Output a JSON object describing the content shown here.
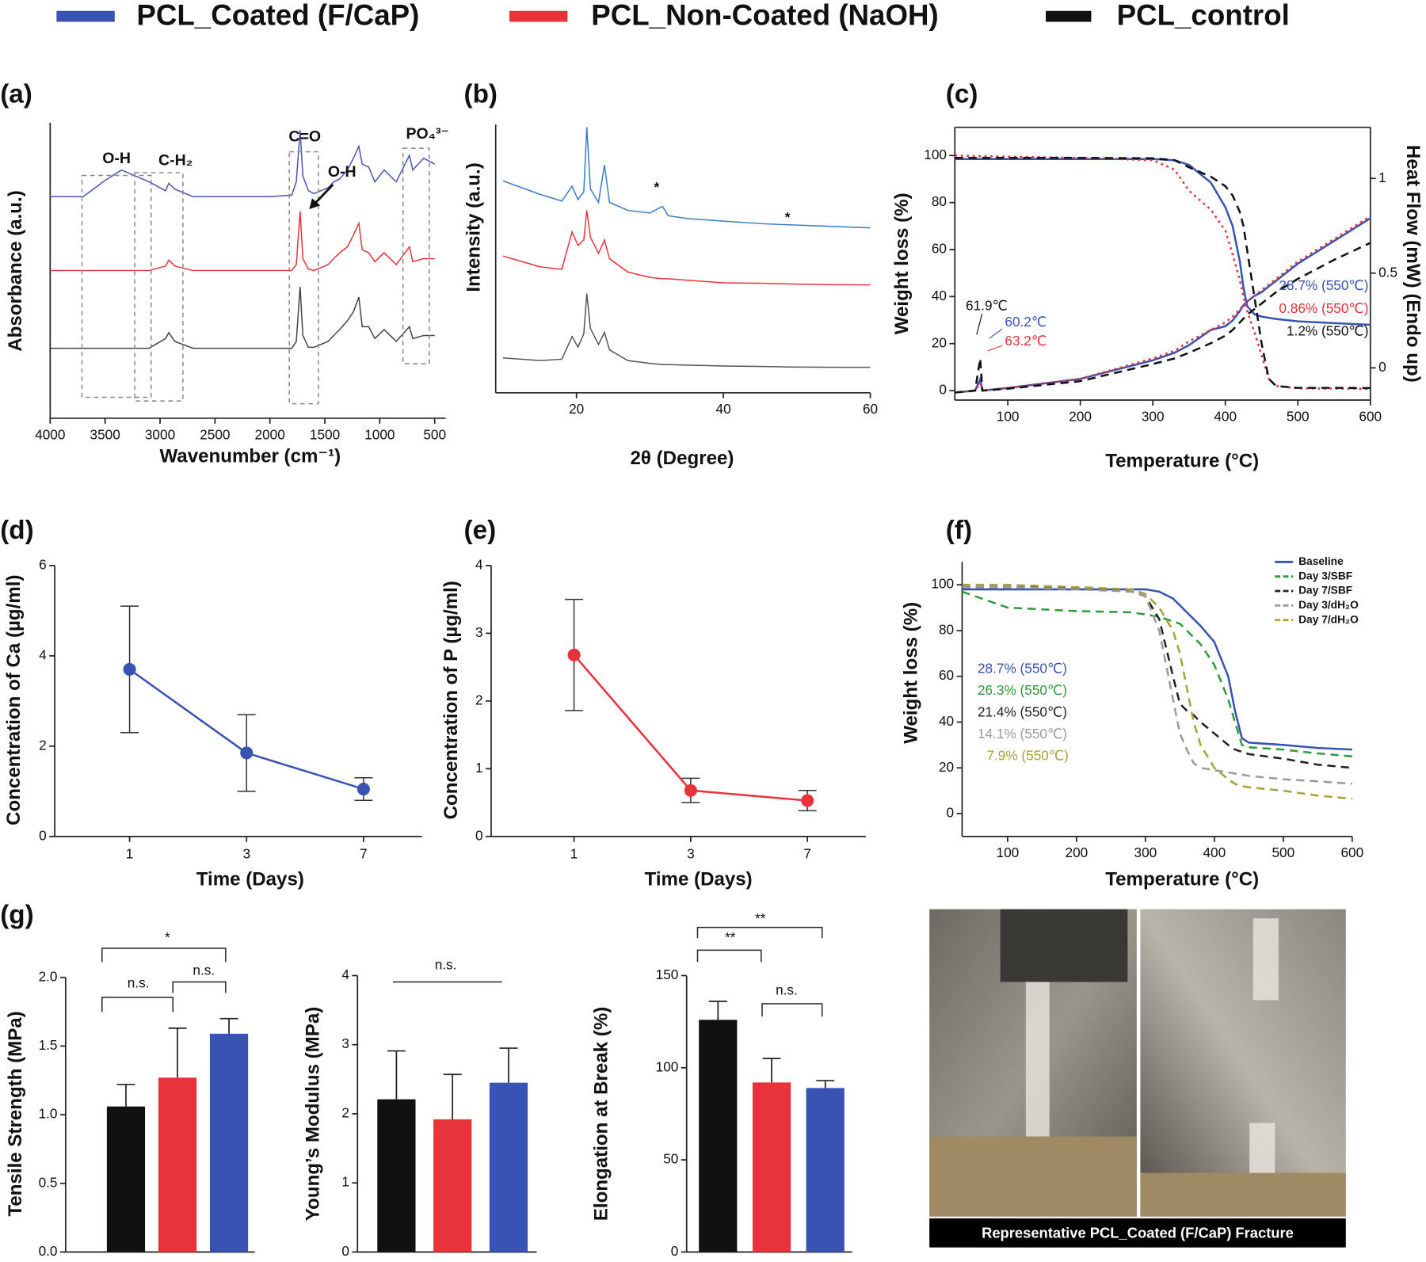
{
  "legend": [
    {
      "name": "PCL_Coated (F/CaP)",
      "color": "#3953b2"
    },
    {
      "name": "PCL_Non-Coated (NaOH)",
      "color": "#e8333a"
    },
    {
      "name": "PCL_control",
      "color": "#111111"
    }
  ],
  "photo": {
    "caption": "Representative PCL_Coated (F/CaP)  Fracture"
  },
  "chart_data": [
    {
      "type": "line",
      "label": "(a)",
      "x_label": "Wavenumber (cm⁻¹)",
      "y_label": "Absorbance (a.u.)",
      "x": [
        4000,
        3700,
        3500,
        3350,
        3100,
        2950,
        2920,
        2865,
        2700,
        2000,
        1800,
        1760,
        1725,
        1700,
        1650,
        1600,
        1470,
        1420,
        1365,
        1295,
        1240,
        1190,
        1160,
        1100,
        1045,
        960,
        850,
        730,
        700,
        600,
        500
      ],
      "xlim": [
        4000,
        400
      ],
      "xticks": [
        4000,
        3500,
        3000,
        2500,
        2000,
        1500,
        1000,
        500
      ],
      "ylim": [
        0,
        100
      ],
      "series": [
        {
          "color": "#4a52b5",
          "values": [
            75,
            75,
            80.5,
            84,
            80,
            77,
            79.5,
            77.5,
            75,
            75,
            75.5,
            80,
            97.5,
            82,
            77,
            76,
            78,
            80,
            81,
            84,
            88,
            92,
            86,
            85,
            80,
            84,
            80,
            89,
            84,
            88,
            86
          ]
        },
        {
          "color": "#e8333a",
          "values": [
            50,
            50,
            50,
            50,
            50,
            51.5,
            53.5,
            51.5,
            50,
            50,
            50,
            52,
            70,
            54,
            50.5,
            50,
            52,
            54,
            56,
            58,
            62,
            66,
            57,
            56,
            53,
            56,
            52,
            58,
            53,
            54,
            54
          ]
        },
        {
          "color": "#444444",
          "values": [
            23.7,
            23.7,
            23.7,
            23.7,
            23.7,
            27,
            29,
            26,
            23.7,
            23.7,
            23.7,
            26,
            44.5,
            28,
            24,
            24,
            26,
            28,
            30,
            33,
            36,
            41,
            31,
            31,
            27,
            30,
            26,
            31,
            27,
            28,
            28
          ]
        }
      ],
      "annotations": [
        "O-H",
        "C-H₂",
        "C=O",
        "O-H",
        "PO₄³⁻"
      ]
    },
    {
      "type": "line",
      "label": "(b)",
      "x_label": "2θ (Degree)",
      "y_label": "Intensity (a.u.)",
      "x": [
        10,
        15,
        18,
        19.4,
        20.2,
        21,
        21.4,
        21.9,
        23,
        23.8,
        24.5,
        27,
        30,
        31.7,
        32.5,
        35,
        40,
        45.6,
        50,
        55,
        60
      ],
      "xlim": [
        9,
        60
      ],
      "xticks": [
        20,
        40,
        60
      ],
      "ylim": [
        0,
        100
      ],
      "series": [
        {
          "color": "#3a7bc8",
          "values": [
            79,
            74,
            71.5,
            77,
            72,
            75,
            99,
            76,
            71,
            85,
            71,
            68,
            67,
            69.5,
            66,
            65,
            64,
            63,
            62.5,
            62,
            61.5
          ]
        },
        {
          "color": "#e8333a",
          "values": [
            51,
            47,
            46,
            60,
            55,
            57,
            68,
            58,
            52,
            57,
            50,
            45,
            43,
            42.5,
            42.5,
            42,
            41,
            40.8,
            40.5,
            40.3,
            40.2
          ]
        },
        {
          "color": "#555555",
          "values": [
            13,
            12,
            12.5,
            21,
            17,
            22,
            37,
            24,
            18,
            22.5,
            16,
            12,
            11,
            10.5,
            10.5,
            10.3,
            10,
            9.8,
            9.6,
            9.5,
            9.5
          ]
        }
      ],
      "annotations": [
        "*",
        "*"
      ]
    },
    {
      "type": "line",
      "label": "(c)",
      "x_label": "Temperature (°C)",
      "y_label": "Weight loss (%)",
      "y2_label": "Heat Flow (mW) (Endo up)",
      "x": [
        27,
        55,
        62,
        65,
        100,
        200,
        300,
        330,
        350,
        380,
        400,
        410,
        420,
        425,
        430,
        440,
        450,
        460,
        470,
        500,
        550,
        600
      ],
      "xlim": [
        27,
        600
      ],
      "xticks": [
        100,
        200,
        300,
        400,
        500,
        600
      ],
      "ylim": [
        -4,
        112
      ],
      "yticks": [
        0,
        20,
        40,
        60,
        80,
        100
      ],
      "y2lim": [
        -0.17,
        1.27
      ],
      "y2ticks": [
        0,
        0.5,
        1
      ],
      "series": [
        {
          "color": "#3953b2",
          "dash": "solid",
          "values": [
            98.5,
            98.5,
            98.5,
            98.5,
            98.5,
            98.5,
            98.5,
            98,
            96,
            88.5,
            78,
            70,
            55,
            44,
            36,
            32.5,
            31.5,
            31,
            30.5,
            29.5,
            28.7,
            28
          ]
        },
        {
          "color": "#e8333a",
          "dash": "dotted",
          "values": [
            100,
            99.8,
            99.7,
            99.7,
            99.5,
            99,
            98,
            94,
            85,
            77,
            68,
            58,
            47,
            40,
            34,
            25,
            15,
            5,
            2,
            1,
            0.86,
            0.8
          ]
        },
        {
          "color": "#111111",
          "dash": "dashed",
          "values": [
            99,
            99,
            99,
            99,
            99,
            99,
            98.8,
            98,
            95,
            91,
            87,
            83,
            76,
            70,
            60,
            40,
            20,
            5,
            2,
            1.2,
            1.2,
            1.1
          ]
        },
        {
          "color": "#3953b2",
          "dash": "solid",
          "axis": "y2",
          "values": [
            -0.13,
            -0.12,
            -0.06,
            -0.12,
            -0.106,
            -0.058,
            0.04,
            0.08,
            0.12,
            0.2,
            0.22,
            0.25,
            0.3,
            0.33,
            0.35,
            0.38,
            0.4,
            0.43,
            0.46,
            0.55,
            0.67,
            0.79
          ]
        },
        {
          "color": "#e8333a",
          "dash": "dotted",
          "axis": "y2",
          "values": [
            -0.13,
            -0.12,
            -0.08,
            -0.12,
            -0.106,
            -0.058,
            0.05,
            0.09,
            0.14,
            0.2,
            0.24,
            0.27,
            0.31,
            0.33,
            0.35,
            0.38,
            0.41,
            0.44,
            0.47,
            0.56,
            0.68,
            0.8
          ]
        },
        {
          "color": "#111111",
          "dash": "dashed",
          "axis": "y2",
          "values": [
            -0.13,
            -0.12,
            0.05,
            -0.12,
            -0.11,
            -0.07,
            0.02,
            0.05,
            0.08,
            0.13,
            0.17,
            0.2,
            0.24,
            0.26,
            0.28,
            0.31,
            0.34,
            0.37,
            0.4,
            0.47,
            0.57,
            0.66
          ]
        }
      ],
      "annotations": [
        {
          "text": "61.9℃",
          "color": "#111111"
        },
        {
          "text": "60.2℃",
          "color": "#3953b2"
        },
        {
          "text": "63.2℃",
          "color": "#e8333a"
        },
        {
          "text": "28.7% (550℃)",
          "color": "#3953b2"
        },
        {
          "text": "0.86% (550℃)",
          "color": "#e8333a"
        },
        {
          "text": "1.2% (550℃)",
          "color": "#111111"
        }
      ]
    },
    {
      "type": "line",
      "label": "(d)",
      "x_label": "Time (Days)",
      "y_label": "Concentration of Ca (µg/ml)",
      "categories": [
        "1",
        "3",
        "7"
      ],
      "values": [
        3.7,
        1.85,
        1.05
      ],
      "errors": [
        1.4,
        0.85,
        0.25
      ],
      "color": "#3953b2",
      "ylim": [
        0,
        6
      ],
      "yticks": [
        0,
        2,
        4,
        6
      ]
    },
    {
      "type": "line",
      "label": "(e)",
      "x_label": "Time (Days)",
      "y_label": "Concentration of P (µg/ml)",
      "categories": [
        "1",
        "3",
        "7"
      ],
      "values": [
        2.68,
        0.68,
        0.53
      ],
      "errors": [
        0.82,
        0.18,
        0.15
      ],
      "color": "#e8333a",
      "ylim": [
        0,
        4
      ],
      "yticks": [
        0,
        1,
        2,
        3,
        4
      ]
    },
    {
      "type": "line",
      "label": "(f)",
      "x_label": "Temperature (°C)",
      "y_label": "Weight loss (%)",
      "legend": "upper right",
      "x": [
        34,
        100,
        200,
        280,
        300,
        320,
        340,
        350,
        360,
        370,
        380,
        400,
        420,
        430,
        440,
        450,
        500,
        550,
        600
      ],
      "xlim": [
        34,
        600
      ],
      "xticks": [
        100,
        200,
        300,
        400,
        500,
        600
      ],
      "ylim": [
        -10,
        110
      ],
      "yticks": [
        0,
        20,
        40,
        60,
        80,
        100
      ],
      "series": [
        {
          "name": "Baseline",
          "color": "#3953b2",
          "dash": "solid",
          "values": [
            98,
            98,
            98,
            98,
            98,
            97,
            94,
            91,
            88,
            85,
            82,
            75,
            60,
            45,
            33,
            31,
            30,
            28.7,
            28
          ]
        },
        {
          "name": "Day 3/SBF",
          "color": "#2e9b3a",
          "dash": "dashed",
          "values": [
            97,
            90,
            88.5,
            88,
            87,
            86,
            84,
            83,
            80,
            77,
            74,
            65,
            50,
            40,
            30,
            29,
            28,
            26.3,
            25
          ]
        },
        {
          "name": "Day 7/SBF",
          "color": "#222222",
          "dash": "dashed",
          "values": [
            99,
            99,
            98.5,
            97,
            95,
            85,
            60,
            48,
            45,
            43,
            40,
            35,
            30,
            28,
            27,
            26,
            24,
            21.4,
            20
          ]
        },
        {
          "name": "Day 3/dH₂O",
          "color": "#9a9a9a",
          "dash": "dashed",
          "values": [
            99,
            99,
            98,
            97,
            95,
            80,
            50,
            35,
            28,
            22,
            20,
            19,
            18,
            17.5,
            17,
            16.5,
            15,
            14.1,
            13
          ]
        },
        {
          "name": "Day 7/dH₂O",
          "color": "#a8a23a",
          "dash": "dashed",
          "values": [
            100,
            100,
            99,
            98,
            96,
            90,
            80,
            70,
            55,
            40,
            30,
            20,
            15,
            13,
            12,
            11.5,
            10,
            7.9,
            6.5
          ]
        }
      ],
      "annotations": [
        {
          "text": "28.7% (550℃)",
          "color": "#3953b2"
        },
        {
          "text": "26.3% (550℃)",
          "color": "#2e9b3a"
        },
        {
          "text": "21.4% (550℃)",
          "color": "#222222"
        },
        {
          "text": "14.1% (550℃)",
          "color": "#9a9a9a"
        },
        {
          "text": "7.9% (550℃)",
          "color": "#a8a23a"
        }
      ]
    },
    {
      "type": "bar",
      "label": "(g)",
      "y_label": "Tensile Strength (MPa)",
      "categories": [
        null,
        null,
        null
      ],
      "values": [
        1.06,
        1.27,
        1.59
      ],
      "errors": [
        0.16,
        0.36,
        0.11
      ],
      "colors": [
        "#111111",
        "#e8333a",
        "#3953b2"
      ],
      "ylim": [
        0,
        2
      ],
      "yticks": [
        {
          "value": 0,
          "label": "0.0"
        },
        0.5,
        {
          "value": 1,
          "label": "1.0"
        },
        1.5,
        {
          "value": 2,
          "label": "2.0"
        }
      ],
      "annotations": [
        "n.s.",
        "n.s.",
        "*"
      ]
    },
    {
      "type": "bar",
      "y_label": "Young’s Modulus (MPa)",
      "categories": [
        null,
        null,
        null
      ],
      "values": [
        2.21,
        1.92,
        2.45
      ],
      "errors": [
        0.7,
        0.65,
        0.5
      ],
      "colors": [
        "#111111",
        "#e8333a",
        "#3953b2"
      ],
      "ylim": [
        0,
        4
      ],
      "yticks": [
        0,
        1,
        2,
        3,
        4
      ],
      "annotations": [
        "n.s."
      ]
    },
    {
      "type": "bar",
      "y_label": "Elongation at Break (%)",
      "categories": [
        null,
        null,
        null
      ],
      "values": [
        126,
        92,
        89
      ],
      "errors": [
        10,
        13,
        4
      ],
      "colors": [
        "#111111",
        "#e8333a",
        "#3953b2"
      ],
      "ylim": [
        0,
        150
      ],
      "yticks": [
        0,
        50,
        100,
        150
      ],
      "annotations": [
        "**",
        "**",
        "n.s."
      ]
    }
  ]
}
